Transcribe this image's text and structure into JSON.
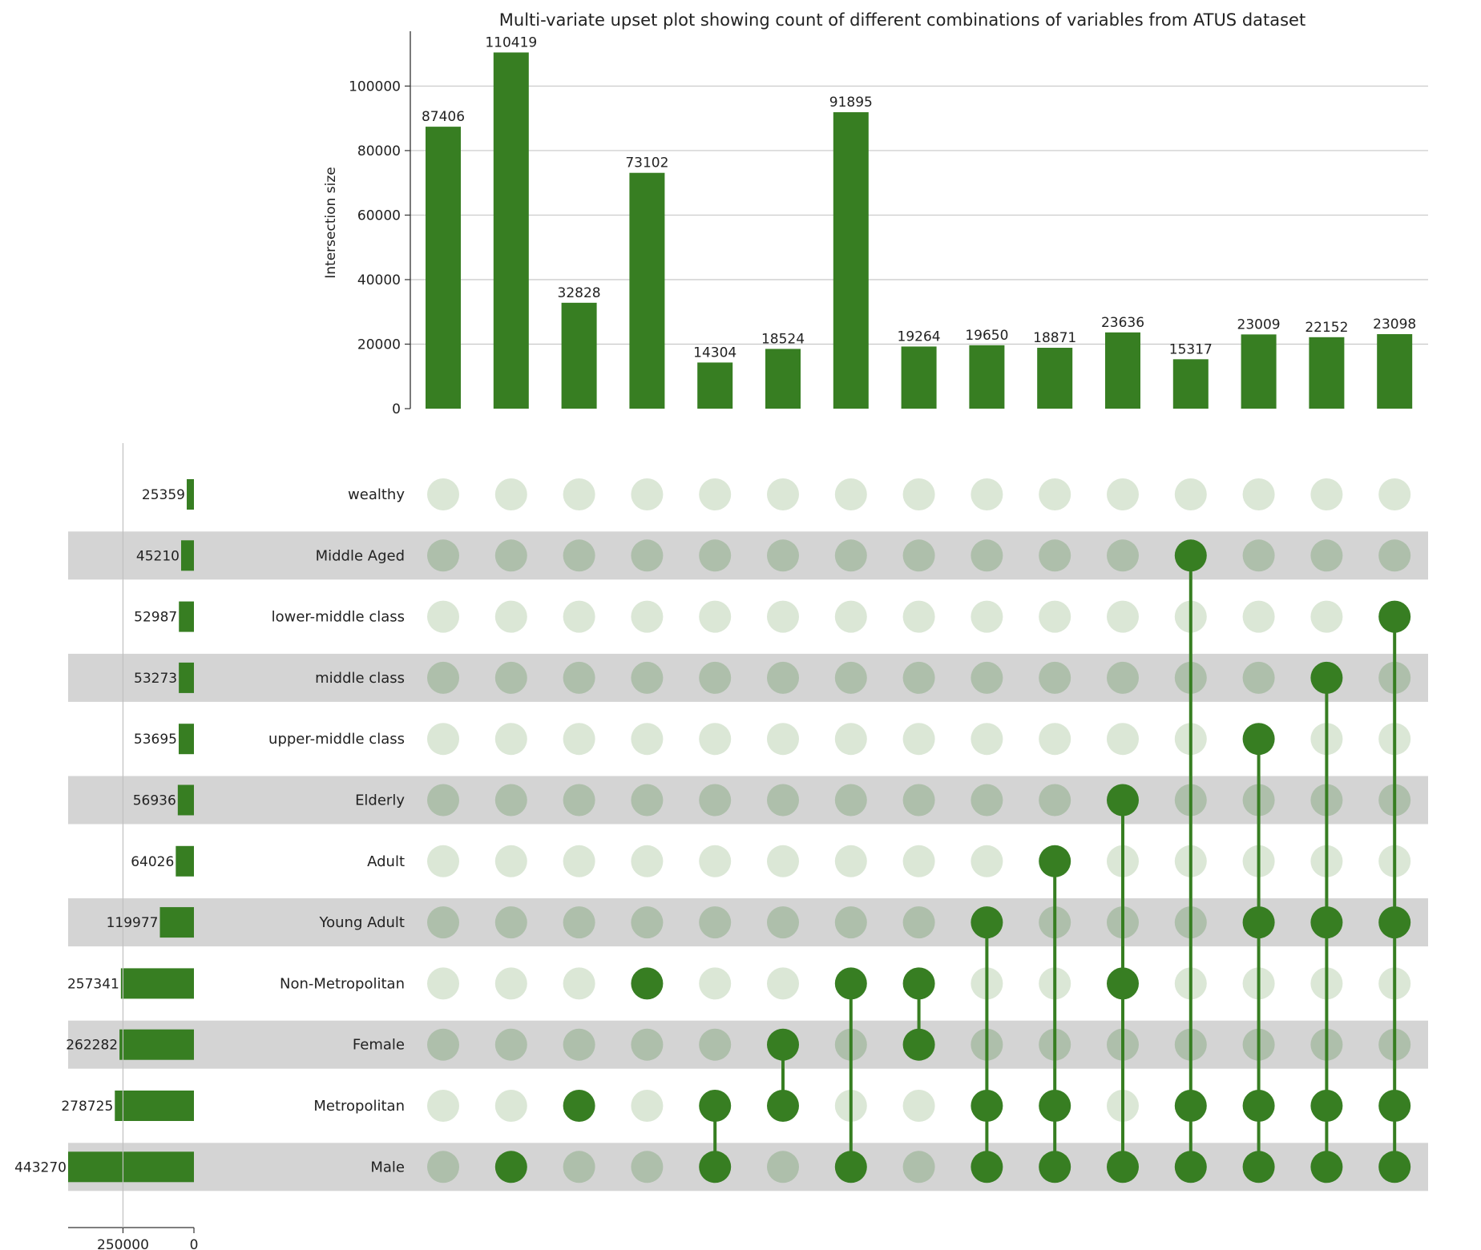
{
  "chart_data": {
    "type": "upset",
    "title": "Multi-variate upset plot showing count of different combinations of variables from ATUS dataset",
    "intersection_axis": {
      "label": "Intersection size",
      "ylim": [
        0,
        116000
      ],
      "ticks": [
        0,
        20000,
        40000,
        60000,
        80000,
        100000
      ],
      "grid": true
    },
    "set_size_axis": {
      "ticks": [
        250000,
        0
      ],
      "xlim": [
        0,
        443270
      ]
    },
    "colors": {
      "bar": "#377e22",
      "dot_active": "#377e22",
      "dot_inactive_light": "#dbe7d6",
      "dot_inactive_dark": "#aebfab",
      "stripe": "#d4d4d4",
      "grid": "#c8c8c8",
      "axis": "#333333"
    },
    "sets": [
      {
        "name": "wealthy",
        "size": 25359
      },
      {
        "name": "Middle Aged",
        "size": 45210
      },
      {
        "name": "lower-middle class",
        "size": 52987
      },
      {
        "name": "middle class",
        "size": 53273
      },
      {
        "name": "upper-middle class",
        "size": 53695
      },
      {
        "name": "Elderly",
        "size": 56936
      },
      {
        "name": "Adult",
        "size": 64026
      },
      {
        "name": "Young Adult",
        "size": 119977
      },
      {
        "name": "Non-Metropolitan",
        "size": 257341
      },
      {
        "name": "Female",
        "size": 262282
      },
      {
        "name": "Metropolitan",
        "size": 278725
      },
      {
        "name": "Male",
        "size": 443270
      }
    ],
    "intersections": [
      {
        "value": 87406,
        "sets": []
      },
      {
        "value": 110419,
        "sets": [
          "Male"
        ]
      },
      {
        "value": 32828,
        "sets": [
          "Metropolitan"
        ]
      },
      {
        "value": 73102,
        "sets": [
          "Non-Metropolitan"
        ]
      },
      {
        "value": 14304,
        "sets": [
          "Metropolitan",
          "Male"
        ]
      },
      {
        "value": 18524,
        "sets": [
          "Female",
          "Metropolitan"
        ]
      },
      {
        "value": 91895,
        "sets": [
          "Non-Metropolitan",
          "Male"
        ]
      },
      {
        "value": 19264,
        "sets": [
          "Non-Metropolitan",
          "Female"
        ]
      },
      {
        "value": 19650,
        "sets": [
          "Young Adult",
          "Metropolitan",
          "Male"
        ]
      },
      {
        "value": 18871,
        "sets": [
          "Adult",
          "Metropolitan",
          "Male"
        ]
      },
      {
        "value": 23636,
        "sets": [
          "Elderly",
          "Non-Metropolitan",
          "Male"
        ]
      },
      {
        "value": 15317,
        "sets": [
          "Middle Aged",
          "Metropolitan",
          "Male"
        ]
      },
      {
        "value": 23009,
        "sets": [
          "upper-middle class",
          "Young Adult",
          "Metropolitan",
          "Male"
        ]
      },
      {
        "value": 22152,
        "sets": [
          "middle class",
          "Young Adult",
          "Metropolitan",
          "Male"
        ]
      },
      {
        "value": 23098,
        "sets": [
          "lower-middle class",
          "Young Adult",
          "Metropolitan",
          "Male"
        ]
      }
    ]
  }
}
